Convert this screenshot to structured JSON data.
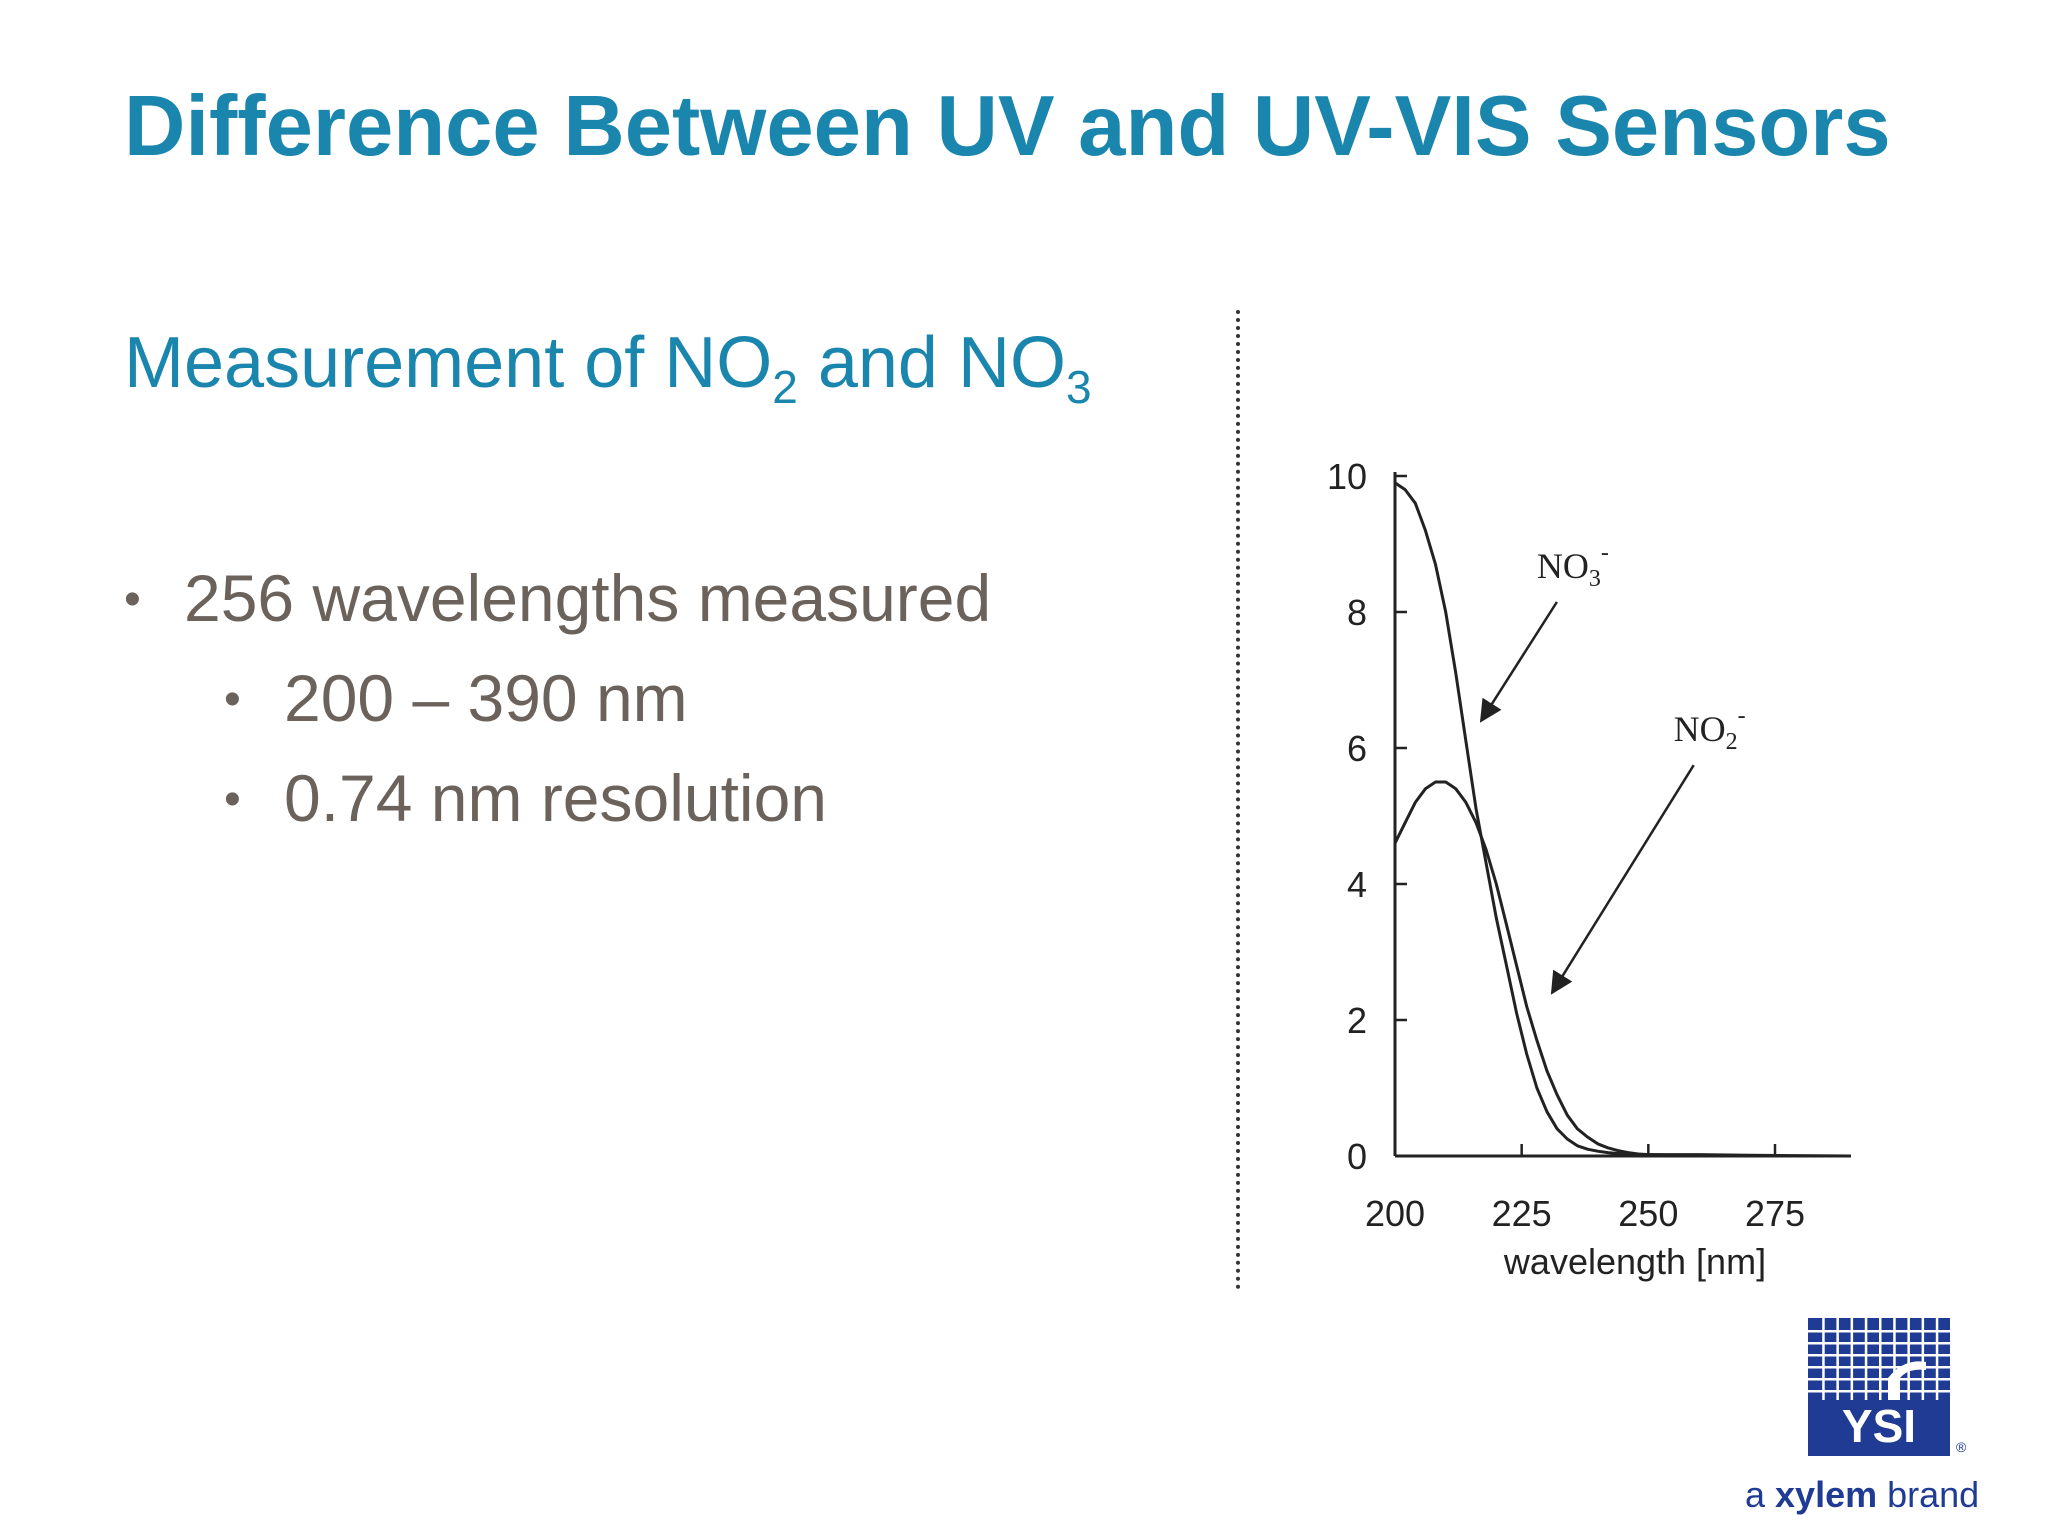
{
  "slide": {
    "title": "Difference Between UV and UV-VIS Sensors",
    "subtitle": {
      "prefix": "Measurement of NO",
      "sub1": "2",
      "middle": " and NO",
      "sub2": "3"
    },
    "bullets": [
      {
        "text": "256 wavelengths measured",
        "level": 1
      },
      {
        "text": "200 – 390 nm",
        "level": 2
      },
      {
        "text": "0.74 nm resolution",
        "level": 2
      }
    ],
    "bullet_glyph": "•"
  },
  "chart_data": {
    "type": "line",
    "xlabel": "wavelength [nm]",
    "ylabel": "",
    "xlim": [
      200,
      290
    ],
    "ylim": [
      0,
      10
    ],
    "x_ticks": [
      200,
      225,
      250,
      275
    ],
    "y_ticks": [
      0,
      2,
      4,
      6,
      8,
      10
    ],
    "grid": false,
    "series": [
      {
        "name": "NO3-",
        "x": [
          200,
          202,
          204,
          206,
          208,
          210,
          212,
          214,
          216,
          218,
          220,
          222,
          224,
          226,
          228,
          230,
          232,
          234,
          236,
          238,
          240,
          242,
          245,
          250,
          255,
          260,
          270,
          290
        ],
        "y": [
          9.9,
          9.8,
          9.6,
          9.2,
          8.7,
          8.0,
          7.1,
          6.1,
          5.1,
          4.3,
          3.5,
          2.8,
          2.1,
          1.5,
          1.0,
          0.65,
          0.4,
          0.25,
          0.15,
          0.1,
          0.07,
          0.05,
          0.03,
          0.02,
          0.02,
          0.02,
          0.01,
          0.0
        ]
      },
      {
        "name": "NO2-",
        "x": [
          200,
          202,
          204,
          206,
          208,
          210,
          212,
          214,
          216,
          218,
          220,
          222,
          224,
          226,
          228,
          230,
          232,
          234,
          236,
          238,
          240,
          242,
          244,
          246,
          248,
          250,
          255,
          260,
          270,
          290
        ],
        "y": [
          4.6,
          4.9,
          5.2,
          5.4,
          5.5,
          5.5,
          5.4,
          5.2,
          4.9,
          4.5,
          4.0,
          3.4,
          2.8,
          2.2,
          1.7,
          1.25,
          0.9,
          0.6,
          0.4,
          0.28,
          0.18,
          0.12,
          0.08,
          0.05,
          0.03,
          0.02,
          0.01,
          0.01,
          0.0,
          0.0
        ]
      }
    ],
    "annotations": [
      {
        "base": "NO",
        "sub": "3",
        "sup": "-",
        "x": 228,
        "y": 8.5,
        "arrow_to": [
          217,
          6.4
        ]
      },
      {
        "base": "NO",
        "sub": "2",
        "sup": "-",
        "x": 255,
        "y": 6.1,
        "arrow_to": [
          231,
          2.4
        ]
      }
    ]
  },
  "logo": {
    "text": "YSI",
    "registered": "®",
    "colors": {
      "navy": "#1f3b94",
      "white": "#ffffff"
    }
  },
  "brand_line": {
    "pre": "a ",
    "bold": "xylem",
    "post": " brand"
  },
  "colors": {
    "title": "#1a86ae",
    "body": "#6b625b",
    "chart": "#222222"
  }
}
